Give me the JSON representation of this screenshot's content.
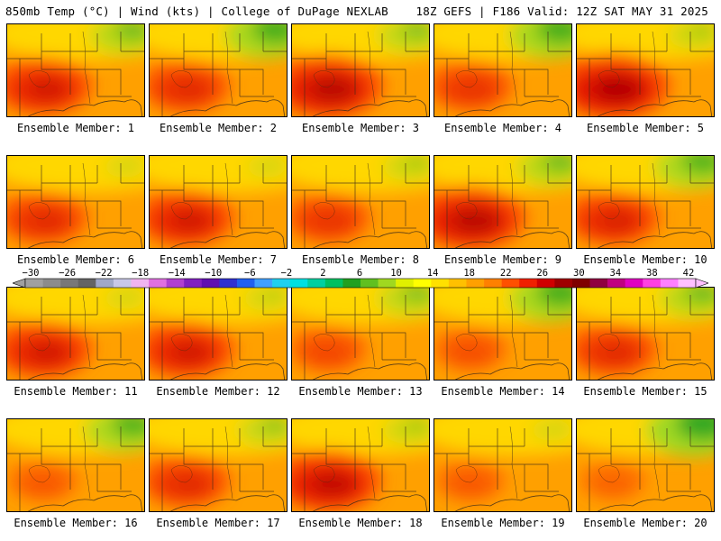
{
  "header": {
    "left": "850mb Temp (°C) | Wind (kts) | College of DuPage NEXLAB",
    "right": "18Z GEFS | F186 Valid: 12Z SAT MAY 31 2025"
  },
  "panels": [
    {
      "label": "Ensemble Member: 1",
      "green": 0.3,
      "red": 0.55
    },
    {
      "label": "Ensemble Member: 2",
      "green": 0.45,
      "red": 0.45
    },
    {
      "label": "Ensemble Member: 3",
      "green": 0.25,
      "red": 0.7
    },
    {
      "label": "Ensemble Member: 4",
      "green": 0.45,
      "red": 0.4
    },
    {
      "label": "Ensemble Member: 5",
      "green": 0.15,
      "red": 0.75
    },
    {
      "label": "Ensemble Member: 6",
      "green": 0.05,
      "red": 0.45
    },
    {
      "label": "Ensemble Member: 7",
      "green": 0.05,
      "red": 0.55
    },
    {
      "label": "Ensemble Member: 8",
      "green": 0.15,
      "red": 0.4
    },
    {
      "label": "Ensemble Member: 9",
      "green": 0.3,
      "red": 0.7
    },
    {
      "label": "Ensemble Member: 10",
      "green": 0.4,
      "red": 0.5
    },
    {
      "label": "Ensemble Member: 11",
      "green": 0.05,
      "red": 0.55
    },
    {
      "label": "Ensemble Member: 12",
      "green": 0.1,
      "red": 0.55
    },
    {
      "label": "Ensemble Member: 13",
      "green": 0.25,
      "red": 0.3
    },
    {
      "label": "Ensemble Member: 14",
      "green": 0.45,
      "red": 0.25
    },
    {
      "label": "Ensemble Member: 15",
      "green": 0.3,
      "red": 0.45
    },
    {
      "label": "Ensemble Member: 16",
      "green": 0.4,
      "red": 0.2
    },
    {
      "label": "Ensemble Member: 17",
      "green": 0.2,
      "red": 0.45
    },
    {
      "label": "Ensemble Member: 18",
      "green": 0.15,
      "red": 0.65
    },
    {
      "label": "Ensemble Member: 19",
      "green": 0.05,
      "red": 0.2
    },
    {
      "label": "Ensemble Member: 20",
      "green": 0.55,
      "red": 0.15
    }
  ],
  "colorbar": {
    "labels": [
      "−30",
      "−26",
      "−22",
      "−18",
      "−14",
      "−10",
      "−6",
      "−2",
      "2",
      "6",
      "10",
      "14",
      "18",
      "22",
      "26",
      "30",
      "34",
      "38",
      "42"
    ],
    "colors": [
      "#a0a0a0",
      "#8c8c8c",
      "#787878",
      "#646464",
      "#a0a8c8",
      "#c8c8e8",
      "#f0b4f0",
      "#e070e0",
      "#b040d0",
      "#8020c0",
      "#6010b0",
      "#3030d0",
      "#2060f0",
      "#40a0ff",
      "#20d0f0",
      "#00e0e0",
      "#00d0a0",
      "#00c060",
      "#20a020",
      "#60c020",
      "#a0d820",
      "#e0f000",
      "#ffff00",
      "#ffe000",
      "#ffc000",
      "#ffa000",
      "#ff8000",
      "#ff5000",
      "#f02000",
      "#d00000",
      "#a00000",
      "#800000",
      "#900040",
      "#c00080",
      "#e000c0",
      "#ff40e0",
      "#ff80ff",
      "#ffc0ff"
    ]
  }
}
